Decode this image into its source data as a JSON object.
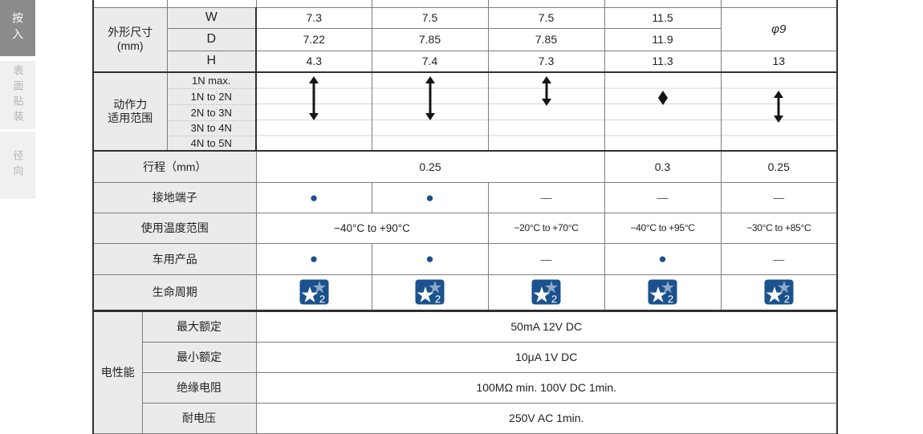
{
  "sidebar": {
    "tabs": [
      {
        "label": "按入",
        "active": true
      },
      {
        "label": "表面贴装",
        "active": false
      },
      {
        "label": "径向",
        "active": false
      }
    ]
  },
  "colors": {
    "accent_navy": "#1a518e",
    "badge_light_star": "#8fa9c7",
    "label_cell_bg": "#ebebeb",
    "active_tab_bg": "#8b8b8b",
    "inactive_tab_bg": "#f0f0f0"
  },
  "symbols": {
    "dot": "●",
    "dash": "—"
  },
  "table": {
    "dimensions": {
      "group_label_line1": "外形尺寸",
      "group_label_line2": "(mm)",
      "rows": [
        {
          "label": "W",
          "values": [
            "7.3",
            "7.5",
            "7.5",
            "11.5"
          ]
        },
        {
          "label": "D",
          "values": [
            "7.22",
            "7.85",
            "7.85",
            "11.9"
          ]
        },
        {
          "label": "H",
          "values": [
            "4.3",
            "7.4",
            "7.3",
            "11.3",
            "13"
          ]
        }
      ],
      "merged_wd_value": "φ9"
    },
    "operating_force": {
      "group_label_line1": "动作力",
      "group_label_line2": "适用范围",
      "range_labels": [
        "1N max.",
        "1N to 2N",
        "2N to 3N",
        "3N to 4N",
        "4N to 5N"
      ],
      "arrows": [
        {
          "column": 1,
          "rows": "1N max. – 2N to 3N"
        },
        {
          "column": 2,
          "rows": "1N max. – 2N to 3N"
        },
        {
          "column": 3,
          "rows": "1N max. – 1N to 2N"
        },
        {
          "column": 4,
          "rows": "1N to 2N"
        },
        {
          "column": 5,
          "rows": "1N to 2N – 2N to 3N"
        }
      ]
    },
    "travel": {
      "label": "行程（mm）",
      "merged_value_c1_c3": "0.25",
      "col4": "0.3",
      "col5": "0.25"
    },
    "ground_terminal": {
      "label": "接地端子",
      "values": [
        "dot",
        "dot",
        "dash",
        "dash",
        "dash"
      ]
    },
    "temperature": {
      "label": "使用温度范围",
      "merged_value_c1_c2": "−40°C to +90°C",
      "col3": "−20°C to +70°C",
      "col4": "−40°C to +95°C",
      "col5": "−30°C to +85°C"
    },
    "automotive": {
      "label": "车用产品",
      "values": [
        "dot",
        "dot",
        "dash",
        "dot",
        "dash"
      ]
    },
    "life_cycle": {
      "label": "生命周期",
      "badge_number": "2"
    },
    "electrical": {
      "group_label": "电性能",
      "rows": [
        {
          "label": "最大额定",
          "value": "50mA 12V DC"
        },
        {
          "label": "最小额定",
          "value": "10μA 1V DC"
        },
        {
          "label": "绝缘电阻",
          "value": "100MΩ min. 100V DC 1min."
        },
        {
          "label": "耐电压",
          "value": "250V AC 1min."
        }
      ]
    }
  }
}
